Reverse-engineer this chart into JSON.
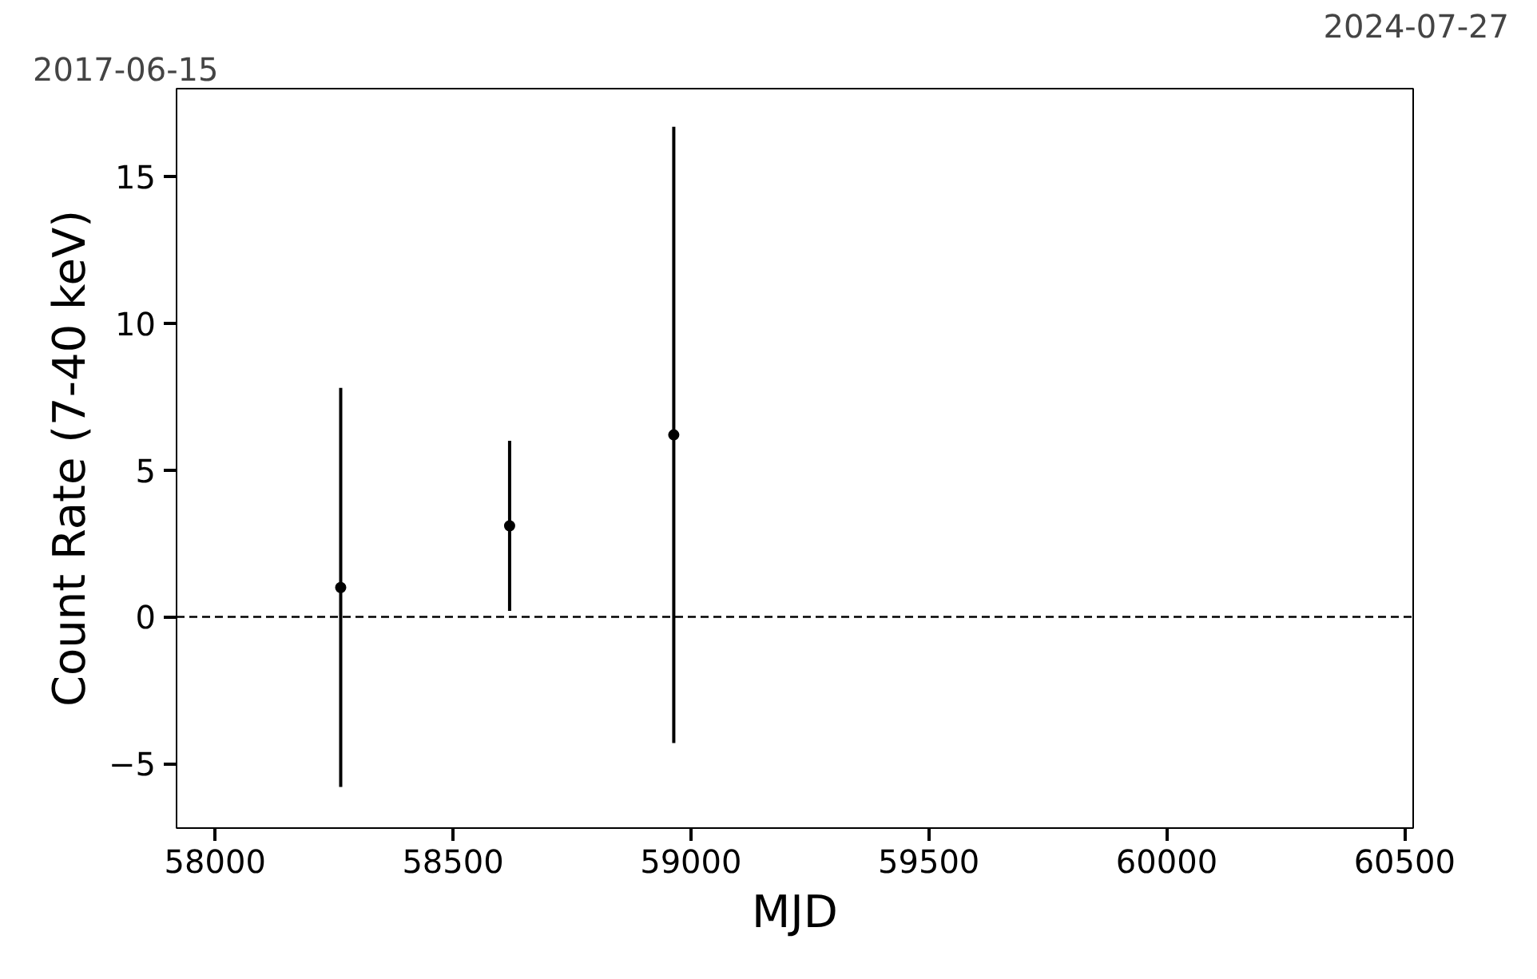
{
  "chart_data": {
    "type": "scatter",
    "xlabel": "MJD",
    "ylabel": "Count Rate (7-40 keV)",
    "x": [
      58264,
      58619,
      58964
    ],
    "values": [
      1.0,
      3.1,
      6.2
    ],
    "errors": [
      6.8,
      2.9,
      10.5
    ],
    "color": "#000000",
    "marker": "circle",
    "grid": false,
    "xlim": [
      57919,
      60518
    ],
    "xticks": [
      58000,
      58500,
      59000,
      59500,
      60000,
      60500
    ],
    "ylim": [
      -7.2,
      18.0
    ],
    "yticks": [
      {
        "value": -5,
        "label": "−5"
      },
      0,
      5,
      10,
      15
    ],
    "annotations": [
      "2017-06-15",
      "2024-07-27"
    ],
    "ref_lines": [
      {
        "axis": "y",
        "value": 0,
        "color": "#000000",
        "line_style": "dashed"
      }
    ]
  }
}
